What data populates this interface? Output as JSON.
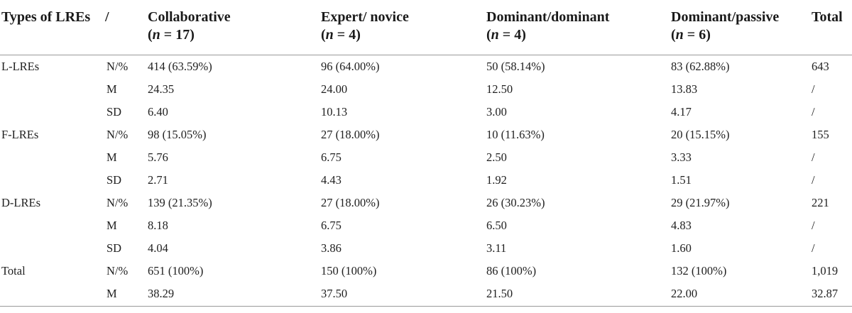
{
  "table": {
    "columns": {
      "col_type": "Types of LREs",
      "col_slash": "/",
      "groups": [
        {
          "label": "Collaborative",
          "paren": "(",
          "n": "n",
          "rest": " = 17)"
        },
        {
          "label": "Expert/ novice",
          "paren": "(",
          "n": "n",
          "rest": " = 4)"
        },
        {
          "label": "Dominant/dominant",
          "paren": "(",
          "n": "n",
          "rest": " = 4)"
        },
        {
          "label": "Dominant/passive",
          "paren": "(",
          "n": "n",
          "rest": " = 6)"
        }
      ],
      "col_total": "Total"
    },
    "rows": [
      {
        "label": "L-LREs",
        "stat": "N/%",
        "c1": "414 (63.59%)",
        "c2": "96 (64.00%)",
        "c3": "50 (58.14%)",
        "c4": "83 (62.88%)",
        "total": "643"
      },
      {
        "label": "",
        "stat": "M",
        "c1": "24.35",
        "c2": "24.00",
        "c3": "12.50",
        "c4": "13.83",
        "total": "/"
      },
      {
        "label": "",
        "stat": "SD",
        "c1": "6.40",
        "c2": "10.13",
        "c3": "3.00",
        "c4": "4.17",
        "total": "/"
      },
      {
        "label": "F-LREs",
        "stat": "N/%",
        "c1": "98 (15.05%)",
        "c2": "27 (18.00%)",
        "c3": "10 (11.63%)",
        "c4": "20 (15.15%)",
        "total": "155"
      },
      {
        "label": "",
        "stat": "M",
        "c1": "5.76",
        "c2": "6.75",
        "c3": "2.50",
        "c4": "3.33",
        "total": "/"
      },
      {
        "label": "",
        "stat": "SD",
        "c1": "2.71",
        "c2": "4.43",
        "c3": "1.92",
        "c4": "1.51",
        "total": "/"
      },
      {
        "label": "D-LREs",
        "stat": "N/%",
        "c1": "139 (21.35%)",
        "c2": "27 (18.00%)",
        "c3": "26 (30.23%)",
        "c4": "29 (21.97%)",
        "total": "221"
      },
      {
        "label": "",
        "stat": "M",
        "c1": "8.18",
        "c2": "6.75",
        "c3": "6.50",
        "c4": "4.83",
        "total": "/"
      },
      {
        "label": "",
        "stat": "SD",
        "c1": "4.04",
        "c2": "3.86",
        "c3": "3.11",
        "c4": "1.60",
        "total": "/"
      },
      {
        "label": "Total",
        "stat": "N/%",
        "c1": "651 (100%)",
        "c2": "150 (100%)",
        "c3": "86 (100%)",
        "c4": "132 (100%)",
        "total": "1,019"
      },
      {
        "label": "",
        "stat": "M",
        "c1": "38.29",
        "c2": "37.50",
        "c3": "21.50",
        "c4": "22.00",
        "total": "32.87"
      }
    ],
    "colors": {
      "text": "#1f1f1f",
      "rule": "#9a9a9a",
      "background": "#ffffff"
    }
  }
}
